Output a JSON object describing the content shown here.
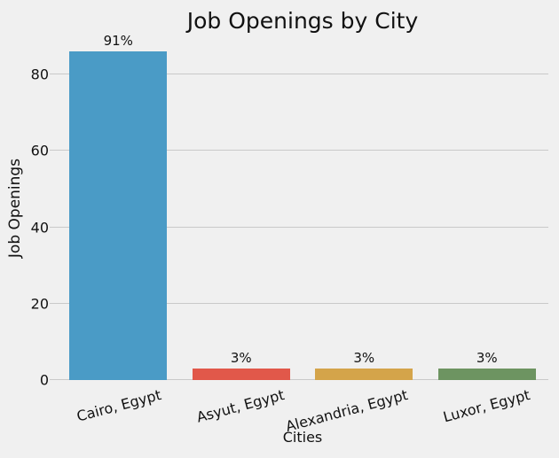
{
  "chart_data": {
    "type": "bar",
    "title": "Job Openings by City",
    "xlabel": "Cities",
    "ylabel": "Job Openings",
    "categories": [
      "Cairo, Egypt",
      "Asyut, Egypt",
      "Alexandria, Egypt",
      "Luxor, Egypt"
    ],
    "values": [
      86,
      3,
      3,
      3
    ],
    "bar_labels": [
      "91%",
      "3%",
      "3%",
      "3%"
    ],
    "bar_colors": [
      "#4a9bc6",
      "#e1584a",
      "#d4a44a",
      "#6d9461"
    ],
    "yticks": [
      0,
      20,
      40,
      60,
      80
    ],
    "ylim": [
      0,
      90
    ],
    "grid": true,
    "legend": "none",
    "background_color": "#f0f0f0",
    "grid_color": "#c9c9c9",
    "text_color": "#111111",
    "x_tick_rotation_deg": 15
  }
}
